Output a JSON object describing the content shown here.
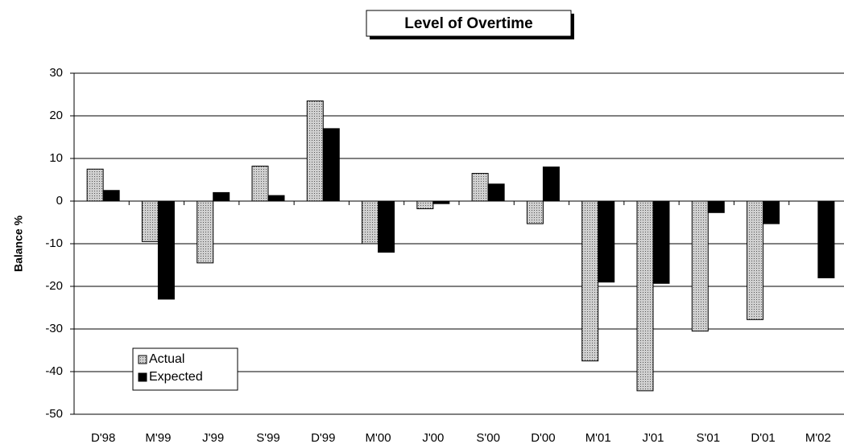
{
  "chart_data": {
    "type": "bar",
    "title": "Level of Overtime",
    "y_label": "Balance %",
    "categories": [
      "D'98",
      "M'99",
      "J'99",
      "S'99",
      "D'99",
      "M'00",
      "J'00",
      "S'00",
      "D'00",
      "M'01",
      "J'01",
      "S'01",
      "D'01",
      "M'02"
    ],
    "series": [
      {
        "name": "Actual",
        "color": "#d0d0d0",
        "values": [
          7.5,
          -9.5,
          -14.5,
          8.2,
          23.5,
          -10,
          -1.8,
          6.5,
          -5.3,
          -37.5,
          -44.5,
          -30.5,
          -27.8,
          null
        ]
      },
      {
        "name": "Expected",
        "color": "#000000",
        "values": [
          2.5,
          -23,
          2,
          1.3,
          17,
          -12,
          -0.6,
          4,
          8,
          -19,
          -19.3,
          -2.7,
          -5.3,
          -18
        ]
      }
    ],
    "ylim": [
      -50,
      30
    ],
    "yticks": [
      -50,
      -40,
      -30,
      -20,
      -10,
      0,
      10,
      20,
      30
    ],
    "grid": true,
    "legend": "lower left"
  }
}
